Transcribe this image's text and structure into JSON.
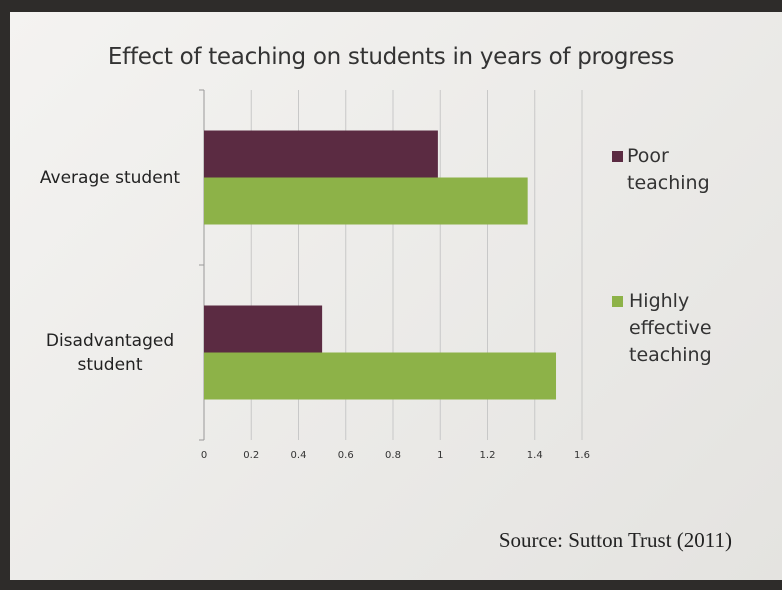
{
  "chart_data": {
    "type": "bar",
    "orientation": "horizontal",
    "title": "Effect of teaching on students in years of progress",
    "categories": [
      "Average student",
      "Disadvantaged student"
    ],
    "series": [
      {
        "name": "Poor teaching",
        "color": "#5b2b42",
        "values": [
          0.99,
          0.5
        ]
      },
      {
        "name": "Highly effective teaching",
        "color": "#8db248",
        "values": [
          1.37,
          1.49
        ]
      }
    ],
    "xlim": [
      0,
      1.6
    ],
    "xticks": [
      0,
      0.2,
      0.4,
      0.6,
      0.8,
      1,
      1.2,
      1.4,
      1.6
    ],
    "grid": true,
    "legend": "right",
    "source": "Source: Sutton Trust (2011)"
  }
}
